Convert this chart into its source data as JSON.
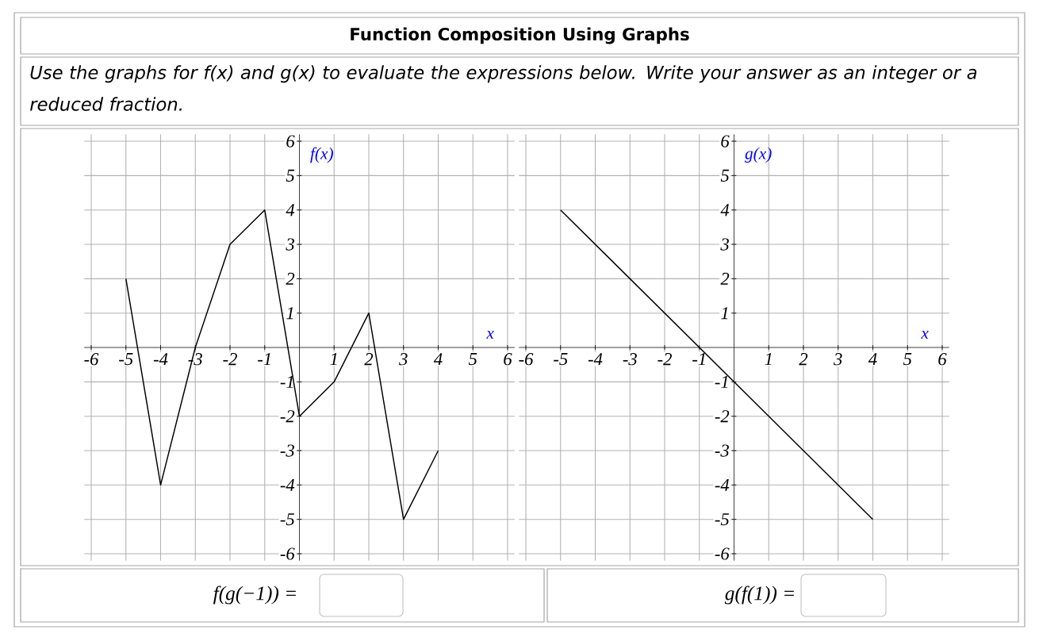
{
  "chart_data": [
    {
      "type": "line",
      "title": "Function Composition Using Graphs",
      "subtitle": "Use the graphs for f(x) and g(x) to evaluate the expressions below. Write your answer as an integer or a reduced fraction.",
      "xlabel": "x",
      "ylabel": "f(x)",
      "x": [
        -5,
        -4,
        -3,
        -2,
        -1,
        0,
        1,
        2,
        3,
        4
      ],
      "series": [
        {
          "color": "#000000",
          "values": [
            2,
            -4,
            0,
            3,
            4,
            -2,
            -1,
            1,
            -5,
            -3
          ]
        }
      ],
      "xlim": [
        -6.2,
        6.2
      ],
      "ylim": [
        -6.2,
        6.2
      ],
      "xticks": [
        -6,
        -5,
        -4,
        -3,
        -2,
        -1,
        {
          "value": 0,
          "label": null
        },
        1,
        2,
        3,
        4,
        5,
        6
      ],
      "yticks": [
        -6,
        -5,
        -4,
        -3,
        -2,
        -1,
        {
          "value": 0,
          "label": null
        },
        1,
        2,
        3,
        4,
        5,
        6
      ],
      "grid": true,
      "annotations": [
        "f(g(−1)) ="
      ]
    },
    {
      "type": "line",
      "xlabel": "x",
      "ylabel": "g(x)",
      "x": [
        -5,
        4
      ],
      "series": [
        {
          "color": "#000000",
          "values": [
            4,
            -5
          ]
        }
      ],
      "xlim": [
        -6.2,
        6.2
      ],
      "ylim": [
        -6.2,
        6.2
      ],
      "xticks": [
        -6,
        -5,
        -4,
        -3,
        -2,
        -1,
        {
          "value": 0,
          "label": null
        },
        1,
        2,
        3,
        4,
        5,
        6
      ],
      "yticks": [
        -6,
        -5,
        -4,
        -3,
        -2,
        -1,
        {
          "value": 0,
          "label": null
        },
        1,
        2,
        3,
        4,
        5,
        6
      ],
      "grid": true,
      "annotations": [
        "g(f(1)) ="
      ]
    }
  ]
}
